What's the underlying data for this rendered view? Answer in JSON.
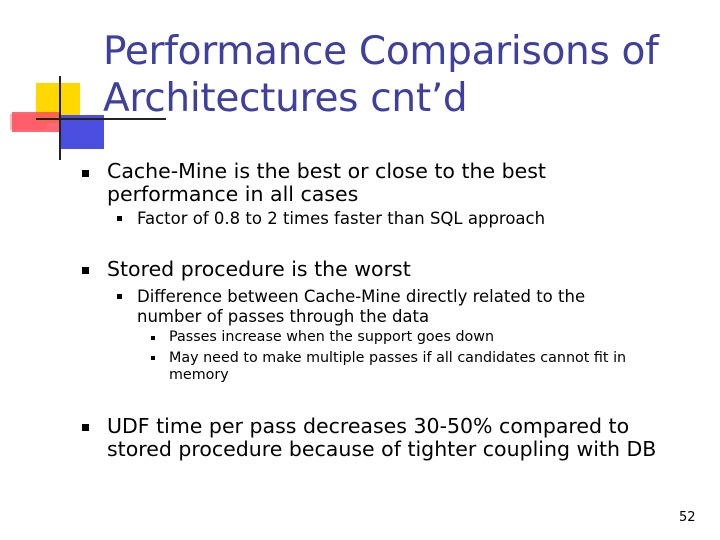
{
  "slide": {
    "title": "Performance Comparisons of Architectures cnt’d",
    "page_number": "52",
    "accent_colors": {
      "title": "#3f3fa0",
      "yellow": "#ffd800",
      "red": "#ff4d5a",
      "blue": "#4b4fe0"
    }
  },
  "bullets": [
    {
      "text": "Cache-Mine is the best or close to the best performance in all cases",
      "sub": [
        {
          "text": "Factor of 0.8 to 2 times faster than SQL approach"
        }
      ]
    },
    {
      "text": "Stored procedure is the worst",
      "sub": [
        {
          "text": "Difference between Cache-Mine directly related to the number of passes through the data",
          "sub": [
            {
              "text": "Passes increase when the support goes down"
            },
            {
              "text": "May need to make multiple passes if all candidates cannot fit in memory"
            }
          ]
        }
      ]
    },
    {
      "text": "UDF time per pass decreases 30-50% compared to stored procedure because of tighter coupling with DB"
    }
  ]
}
